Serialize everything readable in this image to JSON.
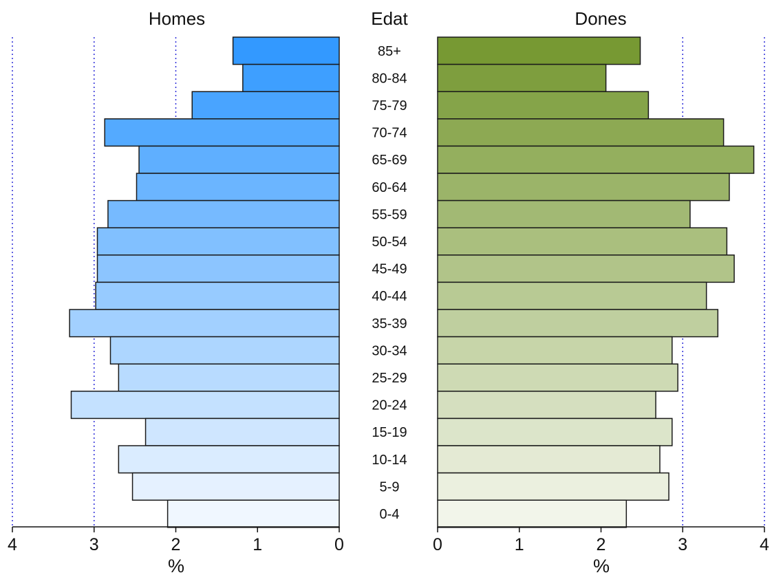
{
  "chart_data": {
    "type": "bar",
    "orientation": "horizontal",
    "layout": "population-pyramid",
    "title_left": "Homes",
    "title_center": "Edat",
    "title_right": "Dones",
    "xlabel": "%",
    "xlim": [
      0,
      4
    ],
    "ticks": [
      "0",
      "1",
      "2",
      "3",
      "4"
    ],
    "grid": "vertical dotted at each integer",
    "categories": [
      "85+",
      "80-84",
      "75-79",
      "70-74",
      "65-69",
      "60-64",
      "55-59",
      "50-54",
      "45-49",
      "40-44",
      "35-39",
      "30-34",
      "25-29",
      "20-24",
      "15-19",
      "10-14",
      "5-9",
      "0-4"
    ],
    "series": [
      {
        "name": "Homes",
        "values": [
          1.3,
          1.18,
          1.8,
          2.87,
          2.45,
          2.48,
          2.83,
          2.96,
          2.96,
          2.98,
          3.3,
          2.8,
          2.7,
          3.28,
          2.37,
          2.7,
          2.53,
          2.1
        ],
        "color_top": "#3399ff",
        "color_bottom": "#f0f7ff"
      },
      {
        "name": "Dones",
        "values": [
          2.48,
          2.06,
          2.58,
          3.5,
          3.87,
          3.57,
          3.09,
          3.54,
          3.63,
          3.29,
          3.43,
          2.87,
          2.94,
          2.67,
          2.87,
          2.72,
          2.83,
          2.31
        ],
        "color_top": "#779933",
        "color_bottom": "#f2f5ea"
      }
    ]
  }
}
